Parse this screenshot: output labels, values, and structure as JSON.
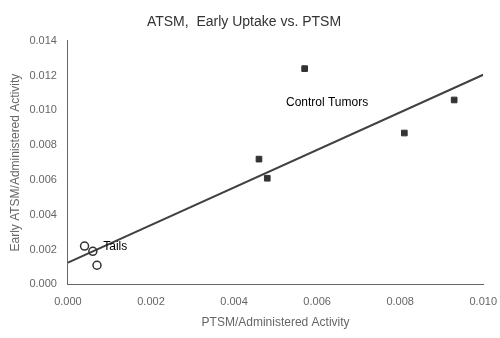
{
  "chart_data": {
    "type": "scatter",
    "title": "ATSM,  Early Uptake vs. PTSM",
    "xlabel": "PTSM/Administered Activity",
    "ylabel": "Early ATSM/Administered Activity",
    "xlim": [
      0.0,
      0.01
    ],
    "ylim": [
      0.0,
      0.014
    ],
    "xticks": [
      {
        "value": 0.0,
        "label": "0.000"
      },
      {
        "value": 0.002,
        "label": "0.002"
      },
      {
        "value": 0.004,
        "label": "0.004"
      },
      {
        "value": 0.006,
        "label": "0.006"
      },
      {
        "value": 0.008,
        "label": "0.008"
      },
      {
        "value": 0.01,
        "label": "0.010"
      }
    ],
    "yticks": [
      {
        "value": 0.0,
        "label": "0.000"
      },
      {
        "value": 0.002,
        "label": "0.002"
      },
      {
        "value": 0.004,
        "label": "0.004"
      },
      {
        "value": 0.006,
        "label": "0.006"
      },
      {
        "value": 0.008,
        "label": "0.008"
      },
      {
        "value": 0.01,
        "label": "0.010"
      },
      {
        "value": 0.012,
        "label": "0.012"
      },
      {
        "value": 0.014,
        "label": "0.014"
      }
    ],
    "grid": false,
    "series": [
      {
        "type": "line",
        "color": "#404040",
        "x": [
          0.0,
          0.01
        ],
        "values": [
          0.00125,
          0.01205
        ]
      },
      {
        "type": "scatter",
        "marker": "square",
        "color": "#333333",
        "x": [
          0.0046,
          0.0048,
          0.0057,
          0.0081,
          0.0093
        ],
        "values": [
          0.0072,
          0.0061,
          0.0124,
          0.0087,
          0.0106
        ]
      },
      {
        "type": "scatter",
        "marker": "open_circle",
        "color": "#333333",
        "x": [
          0.0004,
          0.0006,
          0.0007
        ],
        "values": [
          0.0022,
          0.0019,
          0.0011
        ]
      }
    ],
    "annotations": [
      {
        "text": "Control Tumors",
        "x": 0.00525,
        "y": 0.01025
      },
      {
        "text": "Tails",
        "x": 0.00085,
        "y": 0.00195
      }
    ]
  }
}
